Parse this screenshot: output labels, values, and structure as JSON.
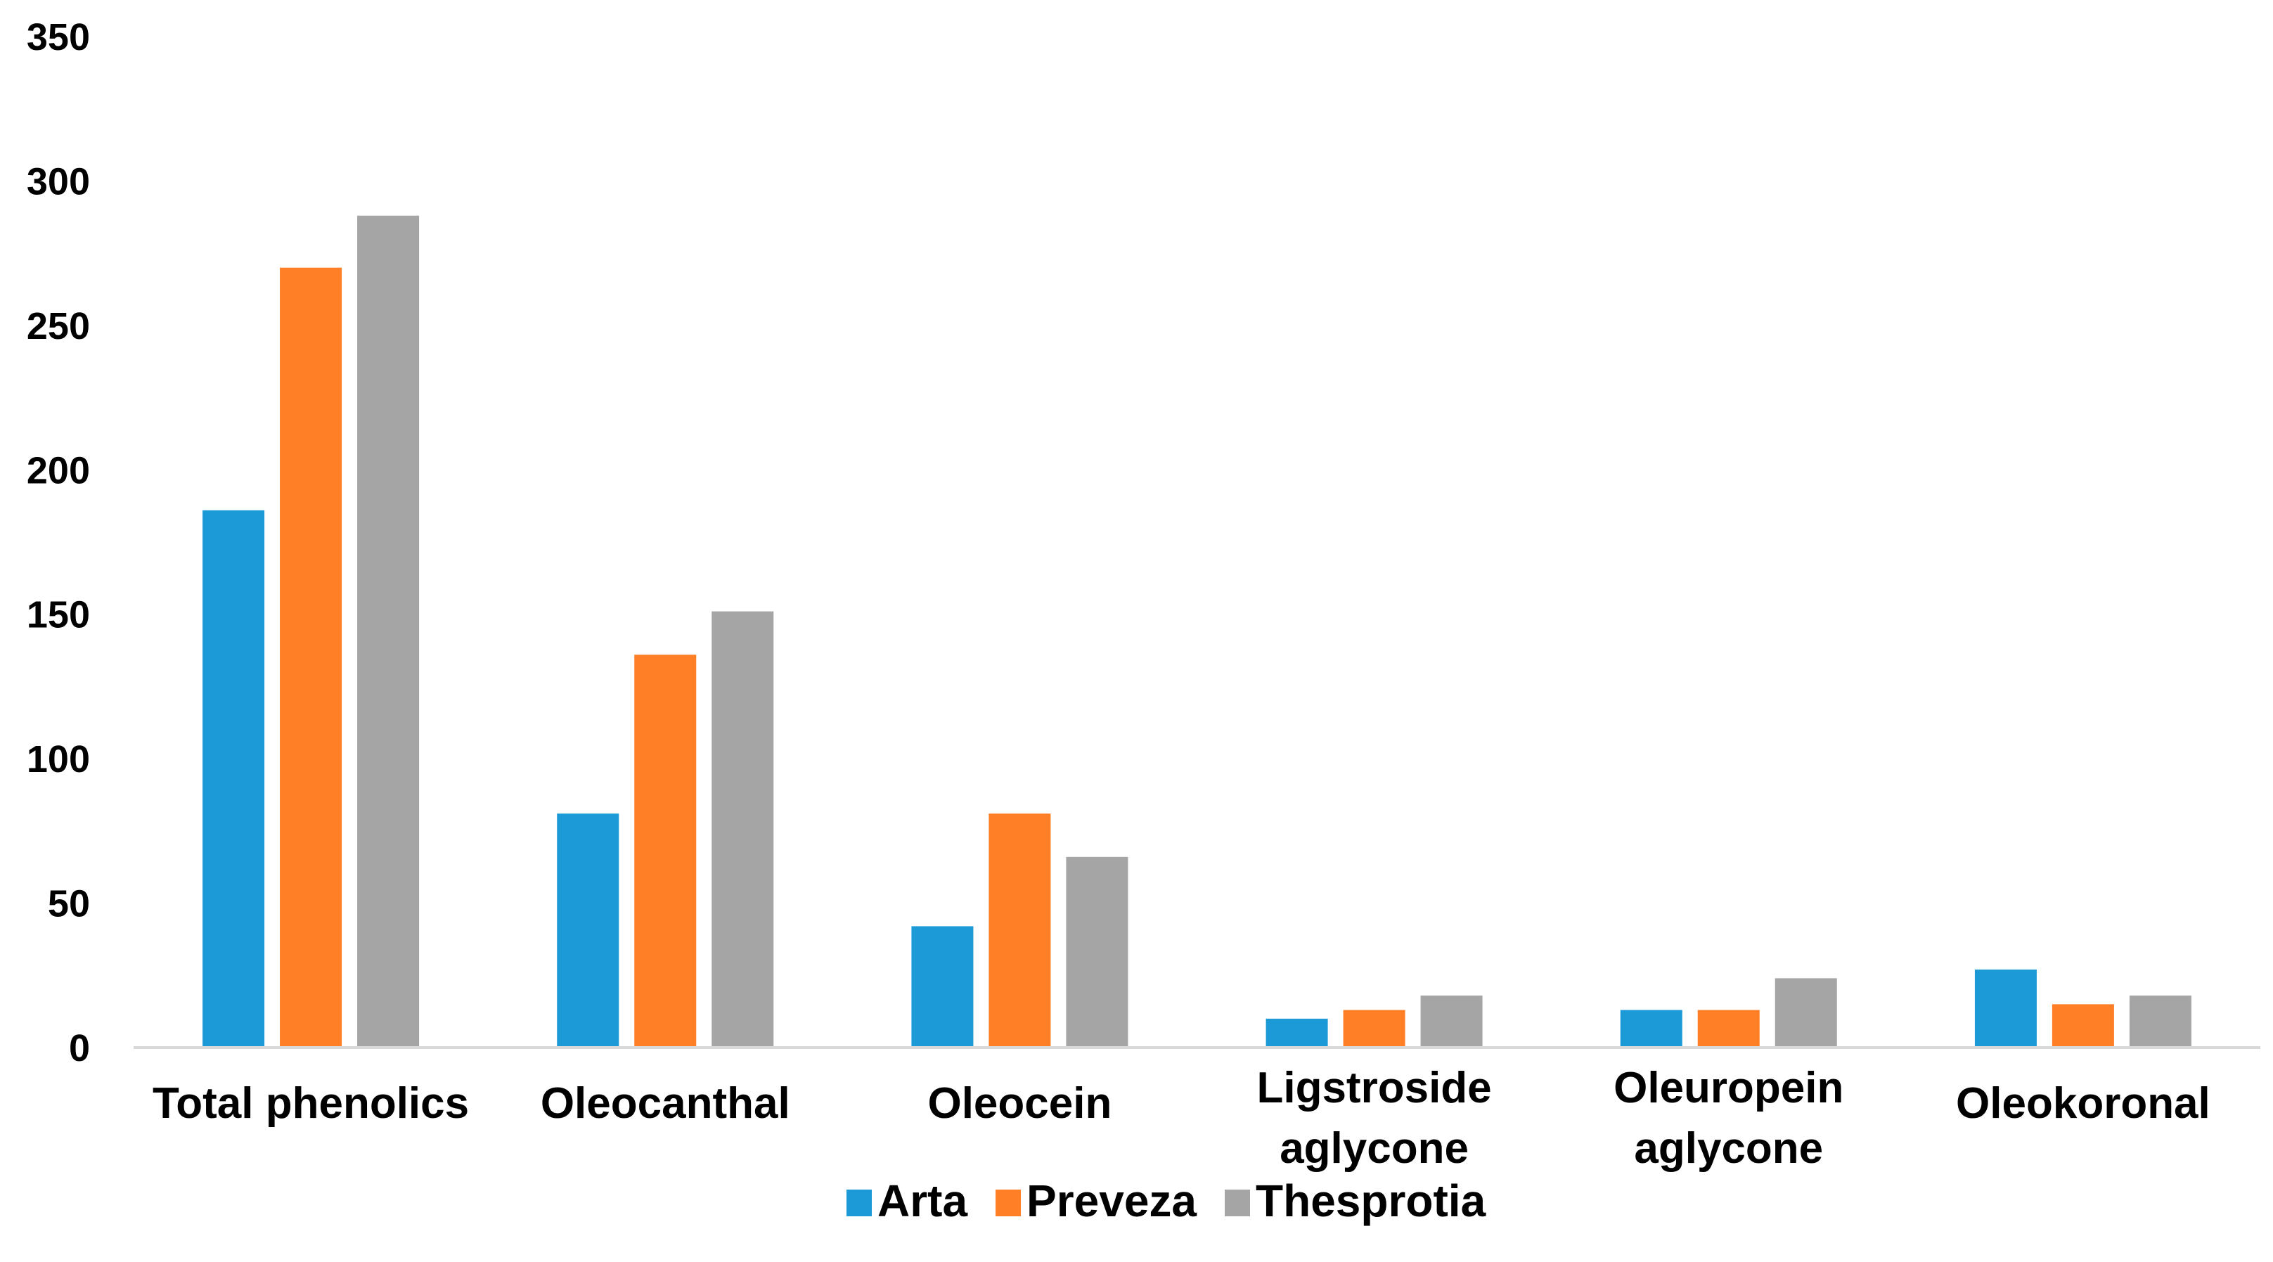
{
  "chart_data": {
    "type": "bar",
    "title": "",
    "xlabel": "",
    "ylabel": "",
    "ylim": [
      0,
      350
    ],
    "yticks": [
      0,
      50,
      100,
      150,
      200,
      250,
      300,
      350
    ],
    "grid": false,
    "legend_position": "bottom",
    "categories": [
      [
        "Total phenolics"
      ],
      [
        "Oleocanthal"
      ],
      [
        "Oleocein"
      ],
      [
        "Ligstroside",
        "aglycone"
      ],
      [
        "Oleuropein",
        "aglycone"
      ],
      [
        "Oleokoronal"
      ]
    ],
    "series": [
      {
        "name": "Arta",
        "color": "#1B9AD7",
        "values": [
          186,
          81,
          42,
          10,
          13,
          27
        ]
      },
      {
        "name": "Preveza",
        "color": "#FF7F27",
        "values": [
          270,
          136,
          81,
          13,
          13,
          15
        ]
      },
      {
        "name": "Thesprotia",
        "color": "#A5A5A5",
        "values": [
          288,
          151,
          66,
          18,
          24,
          18
        ]
      }
    ]
  }
}
